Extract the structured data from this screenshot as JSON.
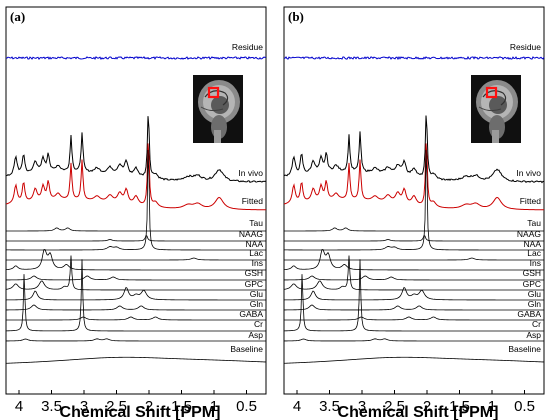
{
  "chart_data": [
    {
      "type": "line",
      "panel_label": "(a)",
      "xlabel": "Chemical Shift [PPM]",
      "xlim": [
        4.2,
        0.2
      ],
      "x_ticks": [
        "4",
        "3.5",
        "3",
        "2.5",
        "2",
        "1.5",
        "1",
        "0.5"
      ],
      "series": [
        {
          "name": "Residue",
          "color": "#0000cc"
        },
        {
          "name": "In vivo",
          "color": "#000000"
        },
        {
          "name": "Fitted",
          "color": "#cc0000"
        },
        {
          "name": "Tau"
        },
        {
          "name": "NAAG"
        },
        {
          "name": "NAA"
        },
        {
          "name": "Lac"
        },
        {
          "name": "Ins"
        },
        {
          "name": "GSH"
        },
        {
          "name": "GPC"
        },
        {
          "name": "Glu"
        },
        {
          "name": "Gln"
        },
        {
          "name": "GABA"
        },
        {
          "name": "Cr"
        },
        {
          "name": "Asp"
        },
        {
          "name": "Baseline"
        }
      ],
      "inset": "sagittal MR brain image with red voxel marker"
    },
    {
      "type": "line",
      "panel_label": "(b)",
      "xlabel": "Chemical Shift [PPM]",
      "xlim": [
        4.2,
        0.2
      ],
      "x_ticks": [
        "4",
        "3.5",
        "3",
        "2.5",
        "2",
        "1.5",
        "1",
        "0.5"
      ],
      "series": [
        {
          "name": "Residue",
          "color": "#0000cc"
        },
        {
          "name": "In vivo",
          "color": "#000000"
        },
        {
          "name": "Fitted",
          "color": "#cc0000"
        },
        {
          "name": "Tau"
        },
        {
          "name": "NAAG"
        },
        {
          "name": "NAA"
        },
        {
          "name": "Lac"
        },
        {
          "name": "Ins"
        },
        {
          "name": "GSH"
        },
        {
          "name": "GPC"
        },
        {
          "name": "Glu"
        },
        {
          "name": "Gln"
        },
        {
          "name": "GABA"
        },
        {
          "name": "Cr"
        },
        {
          "name": "Asp"
        },
        {
          "name": "Baseline"
        }
      ],
      "inset": "sagittal MR brain image with red voxel marker"
    }
  ]
}
